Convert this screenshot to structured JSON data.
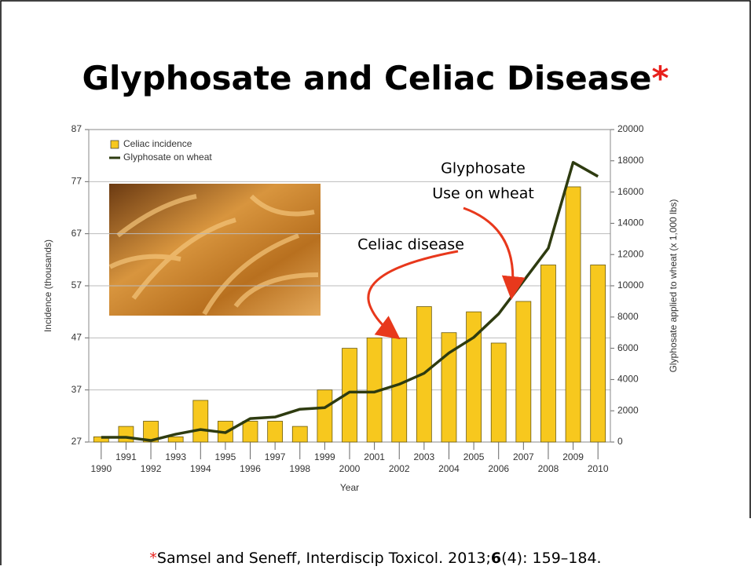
{
  "header": {
    "title": "Glyphosate and Celiac Disease",
    "title_mark": "*"
  },
  "chart_data": {
    "type": "bar_line",
    "categories": [
      "1990",
      "1991",
      "1992",
      "1993",
      "1994",
      "1995",
      "1996",
      "1997",
      "1998",
      "1999",
      "2000",
      "2001",
      "2002",
      "2003",
      "2004",
      "2005",
      "2006",
      "2007",
      "2008",
      "2009",
      "2010"
    ],
    "series": [
      {
        "name": "Celiac incidence",
        "type": "bar",
        "color": "#f7c81e",
        "values": [
          28,
          30,
          31,
          28,
          35,
          31,
          31,
          31,
          30,
          37,
          45,
          47,
          47,
          53,
          48,
          52,
          46,
          54,
          61,
          76,
          61
        ]
      },
      {
        "name": "Glyphosate on wheat",
        "type": "line",
        "axis": "y2",
        "color": "#2e3b10",
        "values": [
          300,
          300,
          100,
          500,
          800,
          600,
          1500,
          1600,
          2100,
          2200,
          3200,
          3200,
          3700,
          4400,
          5700,
          6700,
          8200,
          10300,
          12400,
          17900,
          17000
        ]
      }
    ],
    "ylim": [
      27,
      87
    ],
    "yticks": [
      27,
      37,
      47,
      57,
      67,
      77,
      87
    ],
    "y2lim": [
      0,
      20000
    ],
    "y2ticks": [
      0,
      2000,
      4000,
      6000,
      8000,
      10000,
      12000,
      14000,
      16000,
      18000,
      20000
    ],
    "xlabel": "Year",
    "ylabel": "Incidence (thousands)",
    "y2label": "Glyphosate applied to wheat (x 1,000 lbs)",
    "grid": true,
    "legend": "upper left",
    "annotations": [
      {
        "lines": [
          "Glyphosate",
          "Use on wheat"
        ]
      },
      {
        "lines": [
          "Celiac disease"
        ]
      }
    ]
  },
  "footnote": {
    "mark": "*",
    "text": "Samsel and Seneff, Interdiscip Toxicol. 2013;",
    "bold": "6",
    "rest": "(4): 159–184."
  }
}
